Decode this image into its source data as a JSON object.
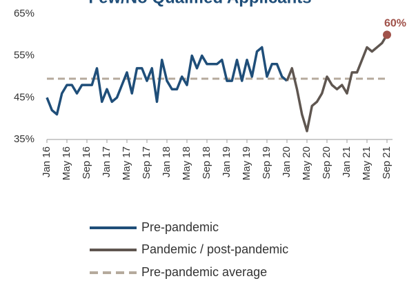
{
  "chart_data": {
    "type": "line",
    "title": "Few/No Qualified Applicants",
    "categories": [
      "Jan 16",
      null,
      null,
      null,
      "May 16",
      null,
      null,
      null,
      "Sep 16",
      null,
      null,
      null,
      "Jan 17",
      null,
      null,
      null,
      "May 17",
      null,
      null,
      null,
      "Sep 17",
      null,
      null,
      null,
      "Jan 18",
      null,
      null,
      null,
      "May 18",
      null,
      null,
      null,
      "Sep 18",
      null,
      null,
      null,
      "Jan 19",
      null,
      null,
      null,
      "May 19",
      null,
      null,
      null,
      "Sep 19",
      null,
      null,
      null,
      "Jan 20",
      null,
      null,
      null,
      "May 20",
      null,
      null,
      null,
      "Sep 20",
      null,
      null,
      null,
      "Jan 21",
      null,
      null,
      null,
      "May 21",
      null,
      null,
      null,
      "Sep 21"
    ],
    "series": [
      {
        "name": "Pre-pandemic",
        "color": "#1f4e79",
        "values": [
          45,
          42,
          41,
          46,
          48,
          48,
          46,
          48,
          48,
          48,
          52,
          44,
          47,
          44,
          45,
          48,
          51,
          46,
          52,
          52,
          49,
          52,
          44,
          54,
          49,
          47,
          47,
          50,
          48,
          55,
          52,
          55,
          53,
          53,
          53,
          54,
          49,
          49,
          54,
          49,
          54,
          50,
          56,
          57,
          50,
          53,
          53,
          50,
          49,
          null,
          null,
          null,
          null,
          null,
          null,
          null,
          null,
          null,
          null,
          null,
          null,
          null,
          null,
          null,
          null,
          null,
          null,
          null,
          null
        ]
      },
      {
        "name": "Pandemic / post-pandemic",
        "color": "#5f5650",
        "values": [
          null,
          null,
          null,
          null,
          null,
          null,
          null,
          null,
          null,
          null,
          null,
          null,
          null,
          null,
          null,
          null,
          null,
          null,
          null,
          null,
          null,
          null,
          null,
          null,
          null,
          null,
          null,
          null,
          null,
          null,
          null,
          null,
          null,
          null,
          null,
          null,
          null,
          null,
          null,
          null,
          null,
          null,
          null,
          null,
          null,
          null,
          null,
          null,
          49,
          52,
          47,
          41,
          37,
          43,
          44,
          46,
          50,
          48,
          47,
          48,
          46,
          51,
          51,
          54,
          57,
          56,
          57,
          58,
          60
        ],
        "value_labels": [
          null,
          null,
          null,
          null,
          null,
          null,
          null,
          null,
          null,
          null,
          null,
          null,
          null,
          null,
          null,
          null,
          null,
          null,
          null,
          null,
          null,
          null,
          null,
          null,
          null,
          null,
          null,
          null,
          null,
          null,
          null,
          null,
          null,
          null,
          null,
          null,
          null,
          null,
          null,
          null,
          null,
          null,
          null,
          null,
          null,
          null,
          null,
          null,
          null,
          null,
          null,
          null,
          null,
          null,
          null,
          null,
          null,
          null,
          null,
          null,
          null,
          null,
          null,
          null,
          null,
          null,
          null,
          null,
          "60%"
        ],
        "marker_color": "#a0524a"
      }
    ],
    "reference_line": {
      "name": "Pre-pandemic average",
      "value": 49.5,
      "color": "#b5aa9c"
    },
    "ylim": [
      35,
      65
    ],
    "yticks": [
      {
        "value": 35,
        "label": "35%"
      },
      {
        "value": 45,
        "label": "45%"
      },
      {
        "value": 55,
        "label": "55%"
      },
      {
        "value": 65,
        "label": "65%"
      }
    ],
    "grid": false
  }
}
